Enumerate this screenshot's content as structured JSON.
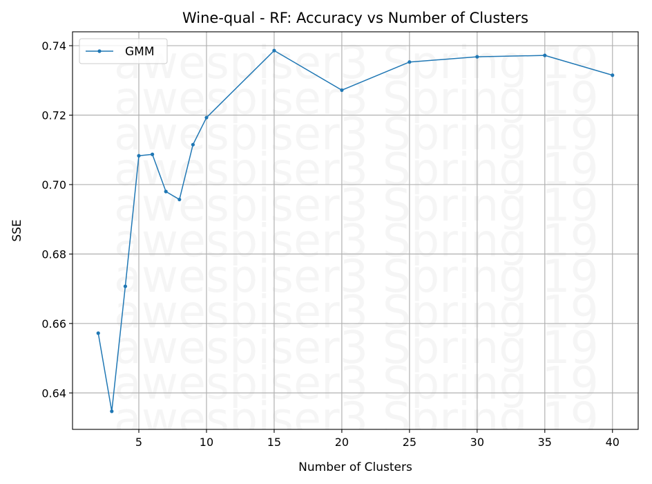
{
  "chart_data": {
    "type": "line",
    "title": "Wine-qual - RF: Accuracy vs Number of Clusters",
    "xlabel": "Number of Clusters",
    "ylabel": "SSE",
    "xlim": [
      0.1,
      41.9
    ],
    "ylim": [
      0.6295,
      0.744
    ],
    "xticks": [
      5,
      10,
      15,
      20,
      25,
      30,
      35,
      40
    ],
    "yticks": [
      0.64,
      0.66,
      0.68,
      0.7,
      0.72,
      0.74
    ],
    "xtick_labels": [
      "5",
      "10",
      "15",
      "20",
      "25",
      "30",
      "35",
      "40"
    ],
    "ytick_labels": [
      "0.64",
      "0.66",
      "0.68",
      "0.70",
      "0.72",
      "0.74"
    ],
    "grid": true,
    "legend_position": "top-left",
    "series": [
      {
        "name": "GMM",
        "color": "#1f77b4",
        "x": [
          2,
          3,
          4,
          5,
          6,
          7,
          8,
          9,
          10,
          15,
          20,
          25,
          30,
          35,
          40
        ],
        "y": [
          0.6572,
          0.6347,
          0.6707,
          0.7083,
          0.7087,
          0.698,
          0.6957,
          0.7115,
          0.7193,
          0.7386,
          0.7272,
          0.7353,
          0.7368,
          0.7372,
          0.7315
        ]
      }
    ],
    "watermark": {
      "text": "awespiser3 Spring 19",
      "repeat": 11
    }
  }
}
